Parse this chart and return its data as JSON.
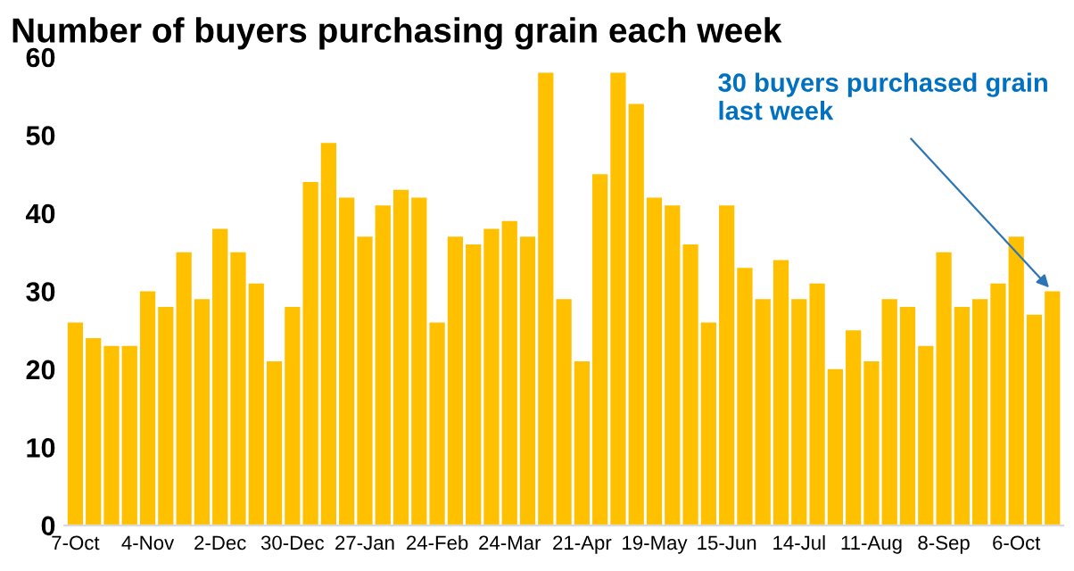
{
  "chart_data": {
    "type": "bar",
    "title": "Number of buyers purchasing grain each week",
    "categories": [
      "7-Oct",
      null,
      null,
      null,
      "4-Nov",
      null,
      null,
      null,
      "2-Dec",
      null,
      null,
      null,
      "30-Dec",
      null,
      null,
      null,
      "27-Jan",
      null,
      null,
      null,
      "24-Feb",
      null,
      null,
      null,
      "24-Mar",
      null,
      null,
      null,
      "21-Apr",
      null,
      null,
      null,
      "19-May",
      null,
      null,
      null,
      "15-Jun",
      null,
      null,
      null,
      "14-Jul",
      null,
      null,
      null,
      "11-Aug",
      null,
      null,
      null,
      "8-Sep",
      null,
      null,
      null,
      "6-Oct",
      null,
      null
    ],
    "values": [
      26,
      24,
      23,
      23,
      30,
      28,
      35,
      29,
      38,
      35,
      31,
      21,
      28,
      44,
      49,
      42,
      37,
      41,
      43,
      42,
      26,
      37,
      36,
      38,
      39,
      37,
      58,
      29,
      21,
      45,
      58,
      54,
      42,
      41,
      36,
      26,
      41,
      33,
      29,
      34,
      29,
      31,
      20,
      25,
      21,
      29,
      28,
      23,
      35,
      28,
      29,
      31,
      37,
      27,
      30
    ],
    "color": "#ffc000",
    "ylim": [
      0,
      60
    ],
    "yticks": [
      0,
      10,
      20,
      30,
      40,
      50,
      60
    ],
    "grid": false,
    "annotations": [
      "30 buyers purchased grain\nlast week"
    ]
  }
}
